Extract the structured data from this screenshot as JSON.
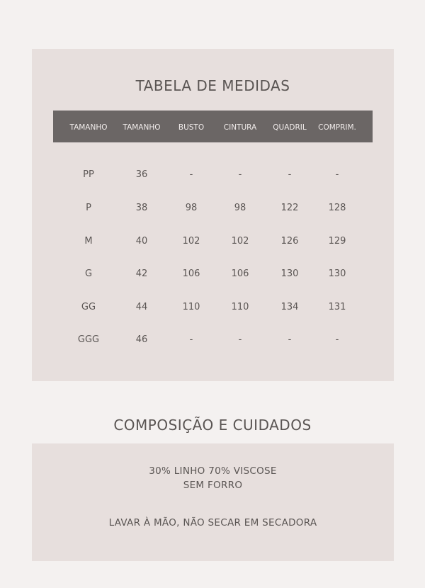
{
  "size_table": {
    "title": "TABELA DE MEDIDAS",
    "headers": [
      "TAMANHO",
      "TAMANHO",
      "BUSTO",
      "CINTURA",
      "QUADRIL",
      "COMPRIM."
    ],
    "rows": [
      [
        "PP",
        "36",
        "-",
        "-",
        "-",
        "-"
      ],
      [
        "P",
        "38",
        "98",
        "98",
        "122",
        "128"
      ],
      [
        "M",
        "40",
        "102",
        "102",
        "126",
        "129"
      ],
      [
        "G",
        "42",
        "106",
        "106",
        "130",
        "130"
      ],
      [
        "GG",
        "44",
        "110",
        "110",
        "134",
        "131"
      ],
      [
        "GGG",
        "46",
        "-",
        "-",
        "-",
        "-"
      ]
    ]
  },
  "composition": {
    "title": "COMPOSIÇÃO E CUIDADOS",
    "lines": [
      "30% LINHO 70%  VISCOSE",
      "SEM FORRO",
      "LAVAR À MÃO, NÃO SECAR EM SECADORA"
    ]
  },
  "colors": {
    "page": "#f4f1f0",
    "panel": "#e7dfdd",
    "header": "#6b6665",
    "text": "#5a5553"
  }
}
